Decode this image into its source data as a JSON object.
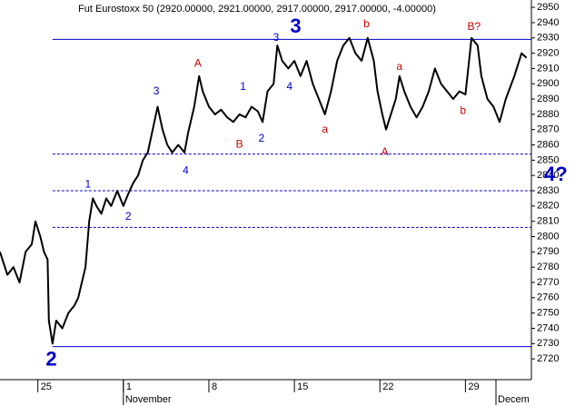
{
  "chart_data": {
    "type": "line",
    "title": "Fut Eurostoxx 50 (2920.00000, 2921.00000, 2917.00000, 2917.00000, -4.00000)",
    "x": [
      -3.1,
      -2.5,
      -2,
      -1.5,
      -1,
      -0.5,
      -0.2,
      0.2,
      0.5,
      0.8,
      0.9,
      1.2,
      1.5,
      2,
      2.5,
      3,
      3.3,
      3.6,
      3.9,
      4.2,
      4.5,
      4.8,
      5.2,
      5.6,
      6,
      6.5,
      7,
      7.4,
      7.8,
      8.2,
      8.6,
      9,
      9.4,
      9.8,
      10.2,
      10.6,
      11,
      11.5,
      12,
      12.3,
      12.8,
      13.2,
      13.5,
      14,
      14.5,
      15,
      15.5,
      16,
      16.5,
      17,
      17.5,
      18,
      18.4,
      18.8,
      19.3,
      19.6,
      20,
      20.5,
      21,
      21.5,
      22,
      22.5,
      23,
      23.5,
      24,
      24.5,
      25,
      25.5,
      26,
      26.5,
      27,
      27.5,
      27.8,
      28.2,
      28.5,
      28.9,
      29.3,
      29.6,
      30,
      30.5,
      31,
      31.5,
      32,
      32.5,
      33,
      33.5,
      34,
      34.5,
      35,
      35.5,
      36,
      36.3,
      36.8,
      37.3,
      37.8,
      38.3,
      39,
      39.6,
      40
    ],
    "series": [
      {
        "color": "#000000",
        "values": [
          2790,
          2775,
          2780,
          2770,
          2790,
          2795,
          2810,
          2800,
          2790,
          2785,
          2745,
          2730,
          2745,
          2740,
          2750,
          2755,
          2760,
          2770,
          2780,
          2810,
          2825,
          2820,
          2815,
          2825,
          2820,
          2830,
          2820,
          2828,
          2835,
          2840,
          2850,
          2855,
          2870,
          2885,
          2870,
          2860,
          2855,
          2860,
          2855,
          2868,
          2885,
          2905,
          2895,
          2885,
          2880,
          2883,
          2878,
          2875,
          2880,
          2878,
          2885,
          2882,
          2875,
          2895,
          2900,
          2925,
          2915,
          2910,
          2915,
          2905,
          2915,
          2900,
          2890,
          2880,
          2895,
          2915,
          2925,
          2930,
          2920,
          2915,
          2930,
          2915,
          2895,
          2880,
          2870,
          2880,
          2890,
          2905,
          2895,
          2885,
          2878,
          2885,
          2895,
          2910,
          2900,
          2895,
          2890,
          2895,
          2893,
          2930,
          2925,
          2905,
          2890,
          2885,
          2875,
          2890,
          2905,
          2920,
          2917
        ]
      }
    ],
    "xlim": [
      -3.1,
      40.4
    ],
    "ylim": [
      2706.4,
      2954.8
    ],
    "xticks": [
      {
        "value": 0,
        "label": "25"
      },
      {
        "value": 7,
        "label": "1"
      },
      {
        "value": 14,
        "label": "8"
      },
      {
        "value": 21,
        "label": "15"
      },
      {
        "value": 28,
        "label": "22"
      },
      {
        "value": 35,
        "label": "29"
      }
    ],
    "month_labels": [
      {
        "value": 7,
        "label": "November"
      },
      {
        "value": 37.5,
        "label": "Decem"
      }
    ],
    "yticks": [
      2720,
      2730,
      2740,
      2750,
      2760,
      2770,
      2780,
      2790,
      2800,
      2810,
      2820,
      2830,
      2840,
      2850,
      2860,
      2870,
      2880,
      2890,
      2900,
      2910,
      2920,
      2930,
      2940,
      2950
    ],
    "levels": [
      {
        "value": 2929,
        "style": "solid",
        "x_start": 1.2
      },
      {
        "value": 2728,
        "style": "solid",
        "x_start": 1.2
      },
      {
        "value": 2854,
        "style": "dashed",
        "x_start": 1.2
      },
      {
        "value": 2830,
        "style": "dashed",
        "x_start": 1.2
      },
      {
        "value": 2806,
        "style": "dashed",
        "x_start": 1.2
      }
    ],
    "annotations": [
      {
        "text": "2",
        "x": 1.1,
        "y": 2719,
        "color": "#0000cc",
        "size": "large"
      },
      {
        "text": "1",
        "x": 4.1,
        "y": 2834,
        "color": "#0000cc",
        "size": "small"
      },
      {
        "text": "2",
        "x": 7.4,
        "y": 2813,
        "color": "#0000cc",
        "size": "small"
      },
      {
        "text": "3",
        "x": 9.7,
        "y": 2895,
        "color": "#0000cc",
        "size": "small"
      },
      {
        "text": "4",
        "x": 12.1,
        "y": 2843,
        "color": "#0000cc",
        "size": "small"
      },
      {
        "text": "A",
        "x": 13.1,
        "y": 2913,
        "color": "#cc0000",
        "size": "small"
      },
      {
        "text": "1",
        "x": 16.8,
        "y": 2898,
        "color": "#0000cc",
        "size": "small"
      },
      {
        "text": "B",
        "x": 16.5,
        "y": 2860,
        "color": "#cc0000",
        "size": "small"
      },
      {
        "text": "2",
        "x": 18.3,
        "y": 2864,
        "color": "#0000cc",
        "size": "small"
      },
      {
        "text": "3",
        "x": 19.5,
        "y": 2930,
        "color": "#0000cc",
        "size": "small"
      },
      {
        "text": "3",
        "x": 21.1,
        "y": 2937,
        "color": "#0000cc",
        "size": "large"
      },
      {
        "text": "4",
        "x": 20.6,
        "y": 2898,
        "color": "#0000cc",
        "size": "small"
      },
      {
        "text": "a",
        "x": 23.5,
        "y": 2870,
        "color": "#cc0000",
        "size": "small"
      },
      {
        "text": "b",
        "x": 26.9,
        "y": 2939,
        "color": "#cc0000",
        "size": "small"
      },
      {
        "text": "A",
        "x": 28.4,
        "y": 2855,
        "color": "#cc0000",
        "size": "small"
      },
      {
        "text": "a",
        "x": 29.6,
        "y": 2911,
        "color": "#cc0000",
        "size": "small"
      },
      {
        "text": "B?",
        "x": 35.7,
        "y": 2937,
        "color": "#cc0000",
        "size": "small"
      },
      {
        "text": "b",
        "x": 34.8,
        "y": 2882,
        "color": "#cc0000",
        "size": "small"
      },
      {
        "text": "4?",
        "x": 42.4,
        "y": 2840,
        "color": "#0000cc",
        "size": "large"
      }
    ],
    "level_color": "#0000cc"
  }
}
